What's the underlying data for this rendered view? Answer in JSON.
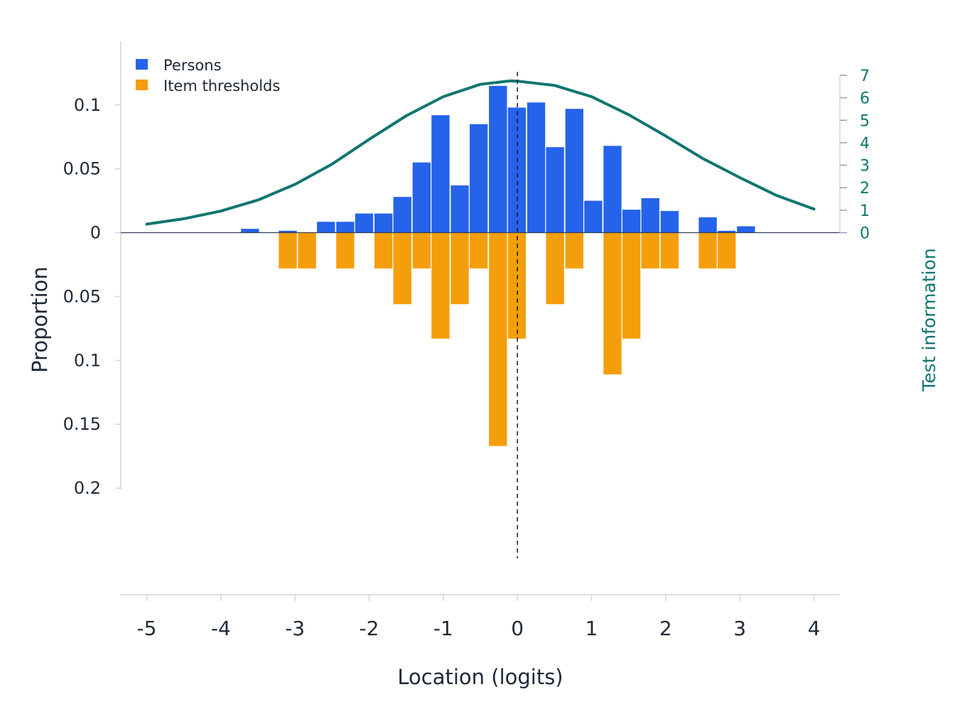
{
  "chart_data": {
    "type": "bar",
    "xlabel": "Location (logits)",
    "ylabel": "Proportion",
    "y2label": "Test information",
    "xlim": [
      -5.35,
      4.35
    ],
    "x_ticks": [
      "-5",
      "-4",
      "-3",
      "-2",
      "-1",
      "0",
      "1",
      "2",
      "3",
      "4"
    ],
    "persons_ylim": [
      0,
      0.15
    ],
    "thresholds_ylim": [
      0,
      0.255
    ],
    "y_ticks_up": [
      "0.1",
      "0.05",
      "0"
    ],
    "y_ticks_down": [
      "0.05",
      "0.1",
      "0.15",
      "0.2"
    ],
    "y2_ticks": [
      "7",
      "6",
      "5",
      "4",
      "3",
      "2",
      "1",
      "0"
    ],
    "y2lim": [
      0,
      7
    ],
    "bin_width": 0.2575,
    "reference_line_x": 0,
    "legend": {
      "position": "top-left",
      "items": [
        {
          "label": "Persons",
          "color": "#2563eb"
        },
        {
          "label": "Item thresholds",
          "color": "#f59e0b"
        }
      ]
    },
    "colors": {
      "persons": "#2563eb",
      "thresholds": "#f59e0b",
      "information": "#0f766e",
      "axis": "#cbd5e1",
      "text": "#1f2937"
    },
    "series": [
      {
        "name": "Persons",
        "direction": "up",
        "bins": [
          {
            "x": -3.86,
            "value": 0.0
          },
          {
            "x": -3.6,
            "value": 0.003
          },
          {
            "x": -3.345,
            "value": 0.0
          },
          {
            "x": -3.09,
            "value": 0.0015
          },
          {
            "x": -2.83,
            "value": 0.0
          },
          {
            "x": -2.575,
            "value": 0.0085
          },
          {
            "x": -2.315,
            "value": 0.0085
          },
          {
            "x": -2.06,
            "value": 0.015
          },
          {
            "x": -1.8,
            "value": 0.015
          },
          {
            "x": -1.545,
            "value": 0.028
          },
          {
            "x": -1.285,
            "value": 0.055
          },
          {
            "x": -1.03,
            "value": 0.092
          },
          {
            "x": -0.77,
            "value": 0.037
          },
          {
            "x": -0.515,
            "value": 0.085
          },
          {
            "x": -0.255,
            "value": 0.115
          },
          {
            "x": 0.0,
            "value": 0.098
          },
          {
            "x": 0.26,
            "value": 0.102
          },
          {
            "x": 0.515,
            "value": 0.067
          },
          {
            "x": 0.775,
            "value": 0.097
          },
          {
            "x": 1.03,
            "value": 0.025
          },
          {
            "x": 1.29,
            "value": 0.068
          },
          {
            "x": 1.545,
            "value": 0.018
          },
          {
            "x": 1.8,
            "value": 0.027
          },
          {
            "x": 2.06,
            "value": 0.017
          },
          {
            "x": 2.315,
            "value": 0.0
          },
          {
            "x": 2.575,
            "value": 0.012
          },
          {
            "x": 2.83,
            "value": 0.0015
          },
          {
            "x": 3.09,
            "value": 0.005
          }
        ]
      },
      {
        "name": "Item thresholds",
        "direction": "down",
        "bins": [
          {
            "x": -3.09,
            "value": 0.028
          },
          {
            "x": -2.83,
            "value": 0.028
          },
          {
            "x": -2.315,
            "value": 0.028
          },
          {
            "x": -1.8,
            "value": 0.028
          },
          {
            "x": -1.545,
            "value": 0.056
          },
          {
            "x": -1.285,
            "value": 0.028
          },
          {
            "x": -1.03,
            "value": 0.083
          },
          {
            "x": -0.77,
            "value": 0.056
          },
          {
            "x": -0.515,
            "value": 0.028
          },
          {
            "x": -0.255,
            "value": 0.167
          },
          {
            "x": 0.0,
            "value": 0.083
          },
          {
            "x": 0.515,
            "value": 0.056
          },
          {
            "x": 0.775,
            "value": 0.028
          },
          {
            "x": 1.29,
            "value": 0.111
          },
          {
            "x": 1.545,
            "value": 0.083
          },
          {
            "x": 1.8,
            "value": 0.028
          },
          {
            "x": 2.06,
            "value": 0.028
          },
          {
            "x": 2.575,
            "value": 0.028
          },
          {
            "x": 2.83,
            "value": 0.028
          }
        ]
      }
    ],
    "information_curve": {
      "x": [
        -5.0,
        -4.5,
        -4.0,
        -3.5,
        -3.0,
        -2.5,
        -2.0,
        -1.5,
        -1.0,
        -0.5,
        -0.1,
        0.0,
        0.5,
        1.0,
        1.5,
        2.0,
        2.5,
        3.0,
        3.5,
        4.0
      ],
      "y": [
        0.38,
        0.62,
        0.96,
        1.45,
        2.15,
        3.05,
        4.15,
        5.2,
        6.05,
        6.6,
        6.75,
        6.74,
        6.55,
        6.05,
        5.25,
        4.3,
        3.3,
        2.45,
        1.65,
        1.05
      ]
    }
  }
}
